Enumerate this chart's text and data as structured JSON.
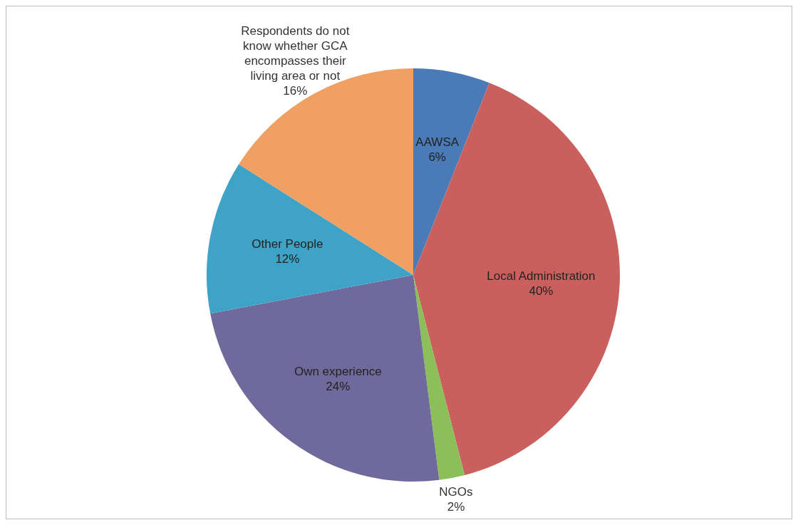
{
  "chart_data": {
    "type": "pie",
    "categories": [
      "AAWSA",
      "Local Administration",
      "NGOs",
      "Own experience",
      "Other People",
      "Respondents do not know whether  GCA encompasses their living area or not"
    ],
    "values": [
      6,
      40,
      2,
      24,
      12,
      16
    ],
    "value_labels": [
      "6%",
      "40%",
      "2%",
      "24%",
      "12%",
      "16%"
    ],
    "colors": [
      "#4a7bb6",
      "#c9605e",
      "#8cbf5a",
      "#6f6a9b",
      "#3ea3c6",
      "#f0a062"
    ]
  }
}
